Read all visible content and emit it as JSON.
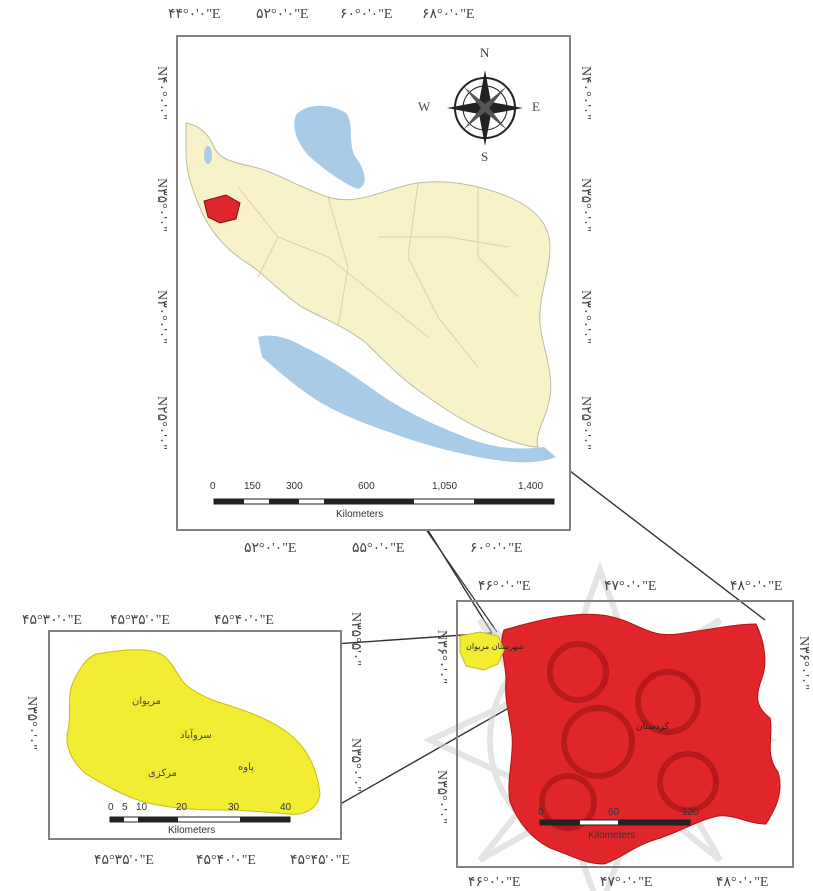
{
  "colors": {
    "land": "#f7f2c8",
    "water": "#a8cbe8",
    "study_province": "#e0262b",
    "district": "#f2ec33",
    "border": "#8a7f7f",
    "watermark": "#bdbdbd"
  },
  "iran_map": {
    "top_longitudes": [
      "۴۴°۰'۰\"E",
      "۵۲°۰'۰\"E",
      "۶۰°۰'۰\"E",
      "۶۸°۰'۰\"E"
    ],
    "bottom_longitudes": [
      "۵۲°۰'۰\"E",
      "۵۵°۰'۰\"E",
      "۶۰°۰'۰\"E"
    ],
    "left_latitudes": [
      "N۴۰°۰'۰\"",
      "N۳۵°۰'۰\"",
      "N۳۰°۰'۰\"",
      "N۲۵°۰'۰\""
    ],
    "right_latitudes": [
      "N۴۰°۰'۰\"",
      "N۳۵°۰'۰\"",
      "N۳۰°۰'۰\"",
      "N۲۵°۰'۰\""
    ],
    "compass": {
      "n": "N",
      "s": "S",
      "e": "E",
      "w": "W"
    },
    "scale": {
      "ticks": [
        "0",
        "150",
        "300",
        "600",
        "1,050",
        "1,400"
      ],
      "unit": "Kilometers"
    }
  },
  "district_map": {
    "top_longitudes": [
      "۴۵°۳۰'۰\"E",
      "۴۵°۳۵'۰\"E",
      "۴۵°۴۰'۰\"E"
    ],
    "bottom_longitudes": [
      "۴۵°۳۵'۰\"E",
      "۴۵°۴۰'۰\"E",
      "۴۵°۴۵'۰\"E"
    ],
    "left_latitude": "N۳۵°۰'۰\"",
    "right_latitudes": [
      "N۳۵°۵'۰\"",
      "N۳۵°۰'۰\""
    ],
    "towns": [
      "مریوان",
      "سروآباد",
      "مرکزی",
      "پاوه"
    ],
    "scale": {
      "ticks": [
        "0",
        "5",
        "10",
        "20",
        "30",
        "40"
      ],
      "unit": "Kilometers"
    }
  },
  "province_map": {
    "top_longitudes": [
      "۴۶°۰'۰\"E",
      "۴۷°۰'۰\"E",
      "۴۸°۰'۰\"E"
    ],
    "bottom_longitudes": [
      "۴۶°۰'۰\"E",
      "۴۷°۰'۰\"E",
      "۴۸°۰'۰\"E"
    ],
    "right_latitudes": [
      "N۳۶°۰'۰\"",
      "N۳۵°۰'۰\""
    ],
    "left_latitudes": [
      "N۳۶°۰'۰\"",
      "N۳۵°۰'۰\""
    ],
    "district_name": "شهرستان مریوان",
    "province_name": "کردستان",
    "scale": {
      "ticks": [
        "0",
        "60",
        "120"
      ],
      "unit": "Kilometers"
    }
  }
}
